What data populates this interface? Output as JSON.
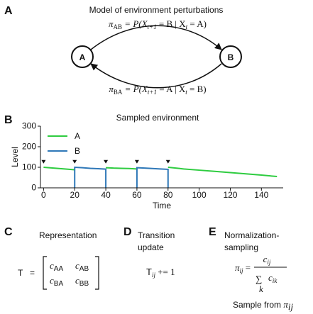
{
  "panel_a": {
    "label": "A",
    "title": "Model of environment perturbations",
    "formula_top": [
      "π",
      "AB",
      " = P(X",
      "t+1",
      " = B | X",
      "t",
      " = A)"
    ],
    "formula_bottom": [
      "π",
      "BA",
      " = P(X",
      "t+1",
      " = A | X",
      "t",
      " = B)"
    ],
    "node_a": "A",
    "node_b": "B"
  },
  "panel_b": {
    "label": "B"
  },
  "chart_data": {
    "type": "line",
    "title": "Sampled environment",
    "x_label": "Time",
    "y_label": "Level",
    "x": [
      0,
      5,
      10,
      15,
      20,
      20,
      20,
      25,
      30,
      35,
      40,
      40,
      40,
      45,
      50,
      55,
      60,
      60,
      60,
      65,
      70,
      75,
      80,
      80,
      80,
      90,
      100,
      110,
      120,
      130,
      140,
      150
    ],
    "series": [
      {
        "name": "A",
        "color": "#2ecc40",
        "values": [
          100,
          97,
          94,
          91,
          88,
          null,
          null,
          null,
          null,
          null,
          null,
          null,
          98,
          96,
          95,
          94,
          92,
          null,
          null,
          null,
          null,
          null,
          null,
          null,
          100,
          92,
          86,
          80,
          74,
          68,
          62,
          55
        ]
      },
      {
        "name": "B",
        "color": "#2f78b8",
        "values": [
          null,
          null,
          null,
          null,
          null,
          0,
          100,
          98,
          95,
          93,
          91,
          0,
          null,
          null,
          null,
          null,
          null,
          0,
          98,
          96,
          94,
          92,
          90,
          0,
          null,
          null,
          null,
          null,
          null,
          null,
          null,
          null
        ]
      }
    ],
    "event_x": [
      0,
      20,
      40,
      60,
      80
    ],
    "event_y": [
      118,
      118,
      118,
      118,
      118
    ],
    "xlim": [
      -2,
      154
    ],
    "ylim": [
      0,
      300
    ],
    "xticks": [
      0,
      20,
      40,
      60,
      80,
      100,
      120,
      140
    ],
    "yticks": [
      0,
      100,
      200,
      300
    ],
    "grid": false,
    "legend": "upper-left"
  },
  "panel_c": {
    "label": "C",
    "title": "Representation",
    "lhs": "T",
    "eq": "=",
    "symbol": "c",
    "entries": [
      [
        "AA",
        "AB"
      ],
      [
        "BA",
        "BB"
      ]
    ]
  },
  "panel_d": {
    "label": "D",
    "title": [
      "Transition",
      "update"
    ],
    "formula": [
      "T",
      "ij",
      " += 1"
    ]
  },
  "panel_e": {
    "label": "E",
    "title": [
      "Normalization-",
      "sampling"
    ],
    "lhs": [
      "π",
      "ij",
      " ="
    ],
    "numerator": [
      "c",
      "ij"
    ],
    "sum": "∑",
    "sum_index": "k",
    "denominator": [
      "c",
      "ik"
    ],
    "note": [
      "Sample from ",
      "π",
      "ij"
    ]
  }
}
